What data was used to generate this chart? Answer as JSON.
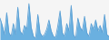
{
  "values": [
    1.2,
    0.8,
    0.3,
    1.5,
    0.4,
    0.2,
    0.9,
    0.3,
    1.8,
    0.5,
    0.3,
    0.8,
    0.6,
    2.0,
    0.7,
    0.2,
    0.1,
    1.4,
    0.4,
    0.2,
    0.3,
    0.6,
    1.1,
    0.5,
    0.2,
    0.15,
    0.8,
    1.6,
    0.4,
    0.2,
    0.9,
    0.5,
    1.9,
    0.3,
    0.1,
    1.2,
    0.7,
    0.5,
    1.3,
    0.4,
    0.2,
    0.9,
    0.6,
    1.1,
    0.5,
    0.8,
    0.4,
    1.4,
    0.3,
    0.2
  ],
  "fill_color": "#6ab0e0",
  "line_color": "#5a9fd4",
  "background_color": "#f5f5f5",
  "ylim_min": 0,
  "ylim_max": 2.2
}
